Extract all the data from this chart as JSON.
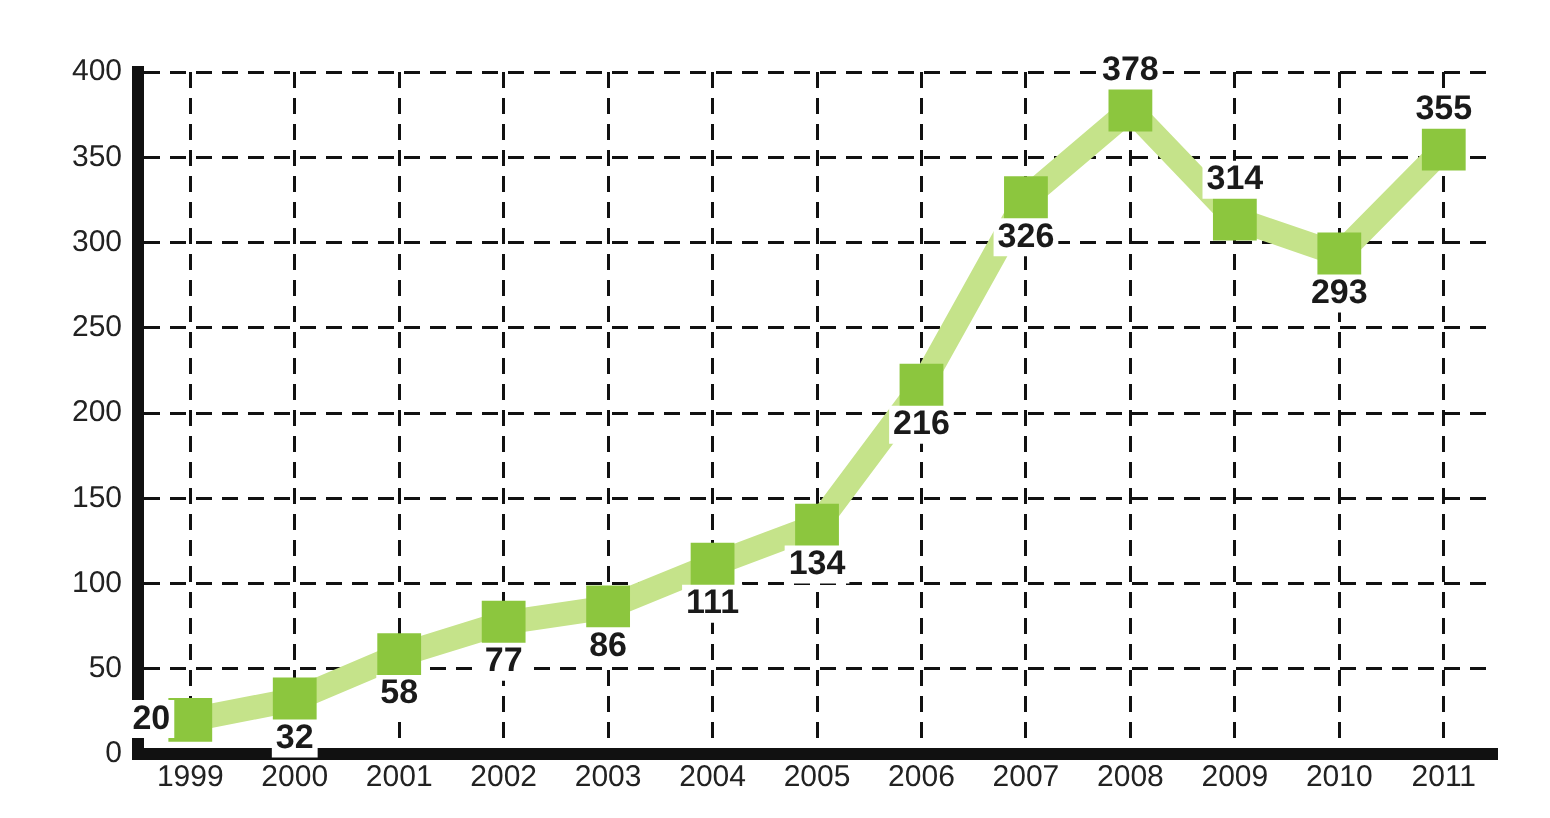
{
  "chart_data": {
    "type": "line",
    "categories": [
      "1999",
      "2000",
      "2001",
      "2002",
      "2003",
      "2004",
      "2005",
      "2006",
      "2007",
      "2008",
      "2009",
      "2010",
      "2011"
    ],
    "series": [
      {
        "color": "#c5e38a",
        "values": [
          20,
          32,
          58,
          77,
          86,
          111,
          134,
          216,
          326,
          378,
          314,
          293,
          355
        ]
      }
    ],
    "ylim": [
      0,
      400
    ],
    "yticks": [
      0,
      50,
      100,
      150,
      200,
      250,
      300,
      350,
      400
    ],
    "grid": true,
    "legend": false,
    "marker": "square",
    "line_style": "solid",
    "data_labels": true
  }
}
